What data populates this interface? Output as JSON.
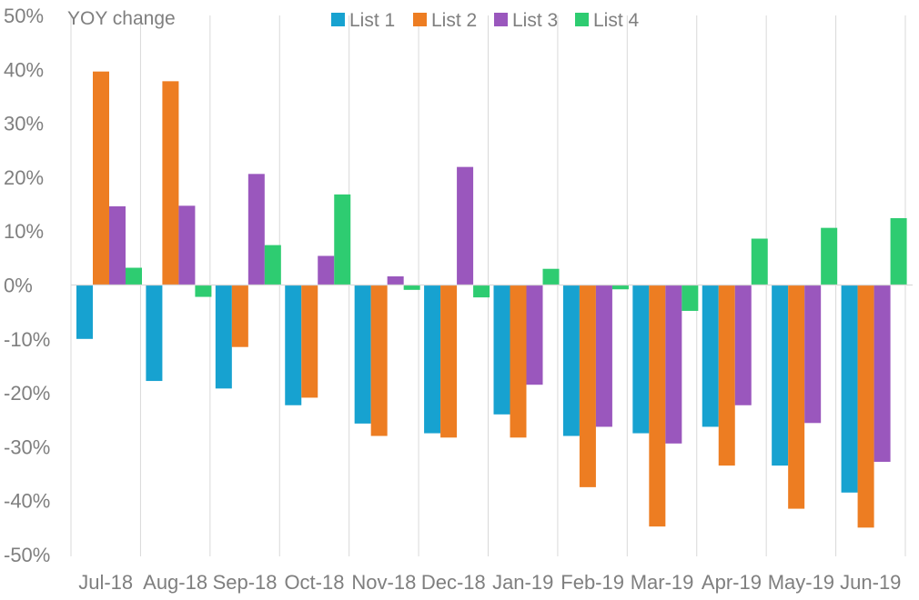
{
  "chart_data": {
    "type": "bar",
    "ylabel": "YOY change",
    "ylim": [
      -50,
      50
    ],
    "yticks": [
      50,
      40,
      30,
      20,
      10,
      0,
      -10,
      -20,
      -30,
      -40,
      -50
    ],
    "ytick_labels": [
      "50%",
      "40%",
      "30%",
      "20%",
      "10%",
      "0%",
      "-10%",
      "-20%",
      "-30%",
      "-40%",
      "-50%"
    ],
    "categories": [
      "Jul-18",
      "Aug-18",
      "Sep-18",
      "Oct-18",
      "Nov-18",
      "Dec-18",
      "Jan-19",
      "Feb-19",
      "Mar-19",
      "Apr-19",
      "May-19",
      "Jun-19"
    ],
    "legend_position": "top",
    "grid": "vertical separators",
    "series": [
      {
        "name": "List 1",
        "color": "#17a2d0",
        "values": [
          -10,
          -17.8,
          -19.2,
          -22.3,
          -25.7,
          -27.5,
          -24,
          -28,
          -27.5,
          -26.3,
          -33.5,
          -38.5
        ]
      },
      {
        "name": "List 2",
        "color": "#ed7d22",
        "values": [
          39.6,
          37.8,
          -11.5,
          -20.9,
          -28,
          -28.3,
          -28.3,
          -37.5,
          -44.8,
          -33.5,
          -41.5,
          -45
        ]
      },
      {
        "name": "List 3",
        "color": "#9a57bd",
        "values": [
          14.6,
          14.7,
          20.6,
          5.4,
          1.6,
          21.9,
          -18.5,
          -26.3,
          -29.4,
          -22.3,
          -25.6,
          -32.8
        ]
      },
      {
        "name": "List 4",
        "color": "#2ecc71",
        "values": [
          3.2,
          -2.2,
          7.4,
          16.8,
          -0.9,
          -2.3,
          3,
          -0.8,
          -4.8,
          8.6,
          10.6,
          12.4
        ]
      }
    ]
  }
}
